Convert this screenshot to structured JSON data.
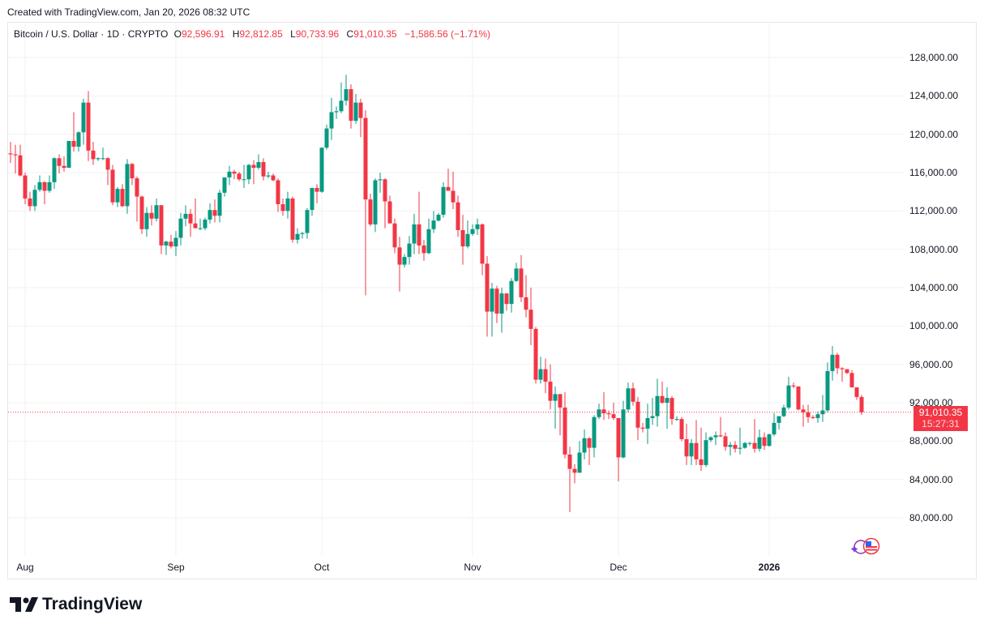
{
  "created_line": "Created with TradingView.com, Jan 20, 2026 08:32 UTC",
  "header": {
    "symbol": "Bitcoin / U.S. Dollar · 1D · CRYPTO",
    "open_label": "O",
    "open": "92,596.91",
    "high_label": "H",
    "high": "92,812.85",
    "low_label": "L",
    "low": "90,733.96",
    "close_label": "C",
    "close": "91,010.35",
    "change": "−1,586.56 (−1.71%)"
  },
  "price_label": {
    "price": "91,010.35",
    "countdown": "15:27:31"
  },
  "logo_text": "TradingView",
  "colors": {
    "up": "#089981",
    "down": "#f23645",
    "grid": "#f2f2f2",
    "price_line": "#f23645"
  },
  "chart_data": {
    "type": "candlestick",
    "title": "Bitcoin / U.S. Dollar · 1D · CRYPTO",
    "interval": "1D",
    "start_date": "2025-07-29",
    "ylim": [
      76000,
      130000
    ],
    "y_ticks": [
      {
        "value": 128000,
        "label": "128,000.00"
      },
      {
        "value": 124000,
        "label": "124,000.00"
      },
      {
        "value": 120000,
        "label": "120,000.00"
      },
      {
        "value": 116000,
        "label": "116,000.00"
      },
      {
        "value": 112000,
        "label": "112,000.00"
      },
      {
        "value": 108000,
        "label": "108,000.00"
      },
      {
        "value": 104000,
        "label": "104,000.00"
      },
      {
        "value": 100000,
        "label": "100,000.00"
      },
      {
        "value": 96000,
        "label": "96,000.00"
      },
      {
        "value": 92000,
        "label": "92,000.00"
      },
      {
        "value": 88000,
        "label": "88,000.00"
      },
      {
        "value": 84000,
        "label": "84,000.00"
      },
      {
        "value": 80000,
        "label": "80,000.00"
      }
    ],
    "x_ticks": [
      {
        "label": "Aug",
        "index": 3
      },
      {
        "label": "Sep",
        "index": 34
      },
      {
        "label": "Oct",
        "index": 64
      },
      {
        "label": "Nov",
        "index": 95
      },
      {
        "label": "Dec",
        "index": 125
      },
      {
        "label": "2026",
        "index": 156,
        "bold": true
      }
    ],
    "last_price": 91010.35,
    "ohlc_columns": [
      "open",
      "high",
      "low",
      "close"
    ],
    "candles": [
      [
        118000,
        119200,
        117000,
        117900
      ],
      [
        117900,
        118900,
        115900,
        117800
      ],
      [
        117800,
        118900,
        115600,
        115700
      ],
      [
        115700,
        116000,
        112700,
        113300
      ],
      [
        113300,
        114000,
        112000,
        112500
      ],
      [
        112500,
        114700,
        112000,
        114200
      ],
      [
        114200,
        115700,
        114000,
        115000
      ],
      [
        115000,
        115100,
        112700,
        114100
      ],
      [
        114100,
        115700,
        113900,
        115000
      ],
      [
        115000,
        117600,
        114300,
        117500
      ],
      [
        117500,
        117900,
        115900,
        116700
      ],
      [
        116700,
        117700,
        116100,
        116500
      ],
      [
        116500,
        119300,
        116500,
        119300
      ],
      [
        119300,
        122300,
        118200,
        118700
      ],
      [
        118700,
        120300,
        118200,
        120200
      ],
      [
        120200,
        123700,
        118900,
        123300
      ],
      [
        123300,
        124500,
        117200,
        118300
      ],
      [
        118300,
        119200,
        116800,
        117400
      ],
      [
        117400,
        117600,
        117200,
        117500
      ],
      [
        117500,
        118600,
        117300,
        117500
      ],
      [
        117500,
        117600,
        114700,
        116300
      ],
      [
        116300,
        116800,
        112600,
        112900
      ],
      [
        112900,
        114500,
        112400,
        114300
      ],
      [
        114300,
        114800,
        112400,
        112500
      ],
      [
        112500,
        117400,
        111700,
        116900
      ],
      [
        116900,
        117000,
        114700,
        115400
      ],
      [
        115400,
        115600,
        110900,
        113500
      ],
      [
        113500,
        113600,
        109600,
        110100
      ],
      [
        110100,
        112400,
        109300,
        111800
      ],
      [
        111800,
        112600,
        110500,
        111200
      ],
      [
        111200,
        113300,
        110900,
        112600
      ],
      [
        112600,
        112600,
        107500,
        108400
      ],
      [
        108400,
        108900,
        107400,
        108800
      ],
      [
        108800,
        109500,
        108100,
        108300
      ],
      [
        108300,
        109900,
        107300,
        109200
      ],
      [
        109200,
        111800,
        108400,
        111200
      ],
      [
        111200,
        112600,
        110400,
        111700
      ],
      [
        111700,
        112200,
        109300,
        110700
      ],
      [
        110700,
        113300,
        110200,
        110200
      ],
      [
        110200,
        111200,
        110000,
        110200
      ],
      [
        110200,
        111300,
        110000,
        111100
      ],
      [
        111100,
        112800,
        110700,
        112100
      ],
      [
        112100,
        113200,
        110800,
        111500
      ],
      [
        111500,
        114200,
        110800,
        113900
      ],
      [
        113900,
        115500,
        113500,
        115500
      ],
      [
        115500,
        116700,
        114700,
        116100
      ],
      [
        116100,
        116300,
        115300,
        115900
      ],
      [
        115900,
        116100,
        115100,
        115300
      ],
      [
        115300,
        116800,
        114400,
        115300
      ],
      [
        115300,
        116900,
        114800,
        116800
      ],
      [
        116800,
        117300,
        114800,
        116500
      ],
      [
        116500,
        117900,
        116300,
        117100
      ],
      [
        117100,
        117500,
        115200,
        115600
      ],
      [
        115600,
        116100,
        115400,
        115700
      ],
      [
        115700,
        115900,
        115100,
        115200
      ],
      [
        115200,
        115400,
        111900,
        112700
      ],
      [
        112700,
        113300,
        111500,
        112000
      ],
      [
        112000,
        114000,
        111200,
        113300
      ],
      [
        113300,
        113500,
        108700,
        109000
      ],
      [
        109000,
        110200,
        108600,
        109600
      ],
      [
        109600,
        109800,
        109100,
        109700
      ],
      [
        109700,
        112300,
        109100,
        112100
      ],
      [
        112100,
        114400,
        111500,
        114400
      ],
      [
        114400,
        114800,
        112800,
        114000
      ],
      [
        114000,
        118600,
        113900,
        118600
      ],
      [
        118600,
        121000,
        118400,
        120600
      ],
      [
        120600,
        123800,
        119400,
        122300
      ],
      [
        122300,
        122900,
        121600,
        122400
      ],
      [
        122400,
        125400,
        122200,
        123500
      ],
      [
        123500,
        126200,
        123000,
        124700
      ],
      [
        124700,
        125200,
        120600,
        121400
      ],
      [
        121400,
        124200,
        121100,
        123300
      ],
      [
        123300,
        123700,
        119700,
        121700
      ],
      [
        121700,
        122500,
        103200,
        113200
      ],
      [
        113200,
        113800,
        110400,
        110600
      ],
      [
        110600,
        115400,
        109800,
        115200
      ],
      [
        115200,
        116000,
        113900,
        115300
      ],
      [
        115300,
        115400,
        110200,
        113000
      ],
      [
        113000,
        113600,
        110800,
        110700
      ],
      [
        110700,
        111200,
        107600,
        108200
      ],
      [
        108200,
        109300,
        103600,
        106400
      ],
      [
        106400,
        107500,
        106100,
        107200
      ],
      [
        107200,
        109400,
        106400,
        108600
      ],
      [
        108600,
        111700,
        107500,
        110600
      ],
      [
        110600,
        114000,
        107500,
        108400
      ],
      [
        108400,
        109000,
        106800,
        107600
      ],
      [
        107600,
        111200,
        107500,
        110100
      ],
      [
        110100,
        112000,
        109700,
        111000
      ],
      [
        111000,
        111800,
        110900,
        111600
      ],
      [
        111600,
        115000,
        111300,
        114500
      ],
      [
        114500,
        116400,
        114300,
        114100
      ],
      [
        114100,
        116100,
        112200,
        112900
      ],
      [
        112900,
        113600,
        109300,
        110000
      ],
      [
        110000,
        111600,
        106400,
        108300
      ],
      [
        108300,
        111000,
        108100,
        109600
      ],
      [
        109600,
        110600,
        109400,
        110100
      ],
      [
        110100,
        111200,
        109500,
        110600
      ],
      [
        110600,
        110700,
        105300,
        106500
      ],
      [
        106500,
        107300,
        98900,
        101500
      ],
      [
        101500,
        104500,
        98900,
        103900
      ],
      [
        103900,
        104200,
        100300,
        101300
      ],
      [
        101300,
        104000,
        99300,
        103400
      ],
      [
        103400,
        103400,
        101600,
        102300
      ],
      [
        102300,
        105000,
        101400,
        104700
      ],
      [
        104700,
        106600,
        104600,
        106000
      ],
      [
        106000,
        107400,
        102500,
        103000
      ],
      [
        103000,
        105300,
        100900,
        101700
      ],
      [
        101700,
        104000,
        98000,
        99700
      ],
      [
        99700,
        99900,
        94000,
        94400
      ],
      [
        94400,
        96800,
        94000,
        95500
      ],
      [
        95500,
        96600,
        93000,
        94200
      ],
      [
        94200,
        96000,
        91300,
        92200
      ],
      [
        92200,
        93700,
        89300,
        92900
      ],
      [
        92900,
        92900,
        88600,
        91500
      ],
      [
        91500,
        93100,
        86200,
        86600
      ],
      [
        86600,
        87400,
        80600,
        85100
      ],
      [
        85100,
        85600,
        83600,
        84700
      ],
      [
        84700,
        88000,
        84700,
        86800
      ],
      [
        86800,
        89200,
        86100,
        88300
      ],
      [
        88300,
        88400,
        85500,
        87300
      ],
      [
        87300,
        90700,
        86300,
        90500
      ],
      [
        90500,
        91900,
        90300,
        91300
      ],
      [
        91300,
        93100,
        90200,
        90900
      ],
      [
        90900,
        91200,
        90300,
        90800
      ],
      [
        90800,
        92000,
        90200,
        90400
      ],
      [
        90400,
        90400,
        83800,
        86300
      ],
      [
        86300,
        92200,
        86200,
        91300
      ],
      [
        91300,
        94100,
        91000,
        93500
      ],
      [
        93500,
        94100,
        91700,
        92100
      ],
      [
        92100,
        92600,
        88100,
        89400
      ],
      [
        89400,
        89900,
        88900,
        89300
      ],
      [
        89300,
        91900,
        87700,
        90400
      ],
      [
        90400,
        92500,
        89700,
        90600
      ],
      [
        90600,
        94500,
        89500,
        92700
      ],
      [
        92700,
        94200,
        91900,
        92000
      ],
      [
        92000,
        93600,
        89300,
        92500
      ],
      [
        92500,
        92700,
        89700,
        90300
      ],
      [
        90300,
        90600,
        90100,
        90300
      ],
      [
        90300,
        90500,
        88000,
        88200
      ],
      [
        88200,
        89800,
        85500,
        86400
      ],
      [
        86400,
        88200,
        85500,
        87800
      ],
      [
        87800,
        90200,
        85500,
        86100
      ],
      [
        86100,
        89400,
        84900,
        85500
      ],
      [
        85500,
        88900,
        85300,
        88100
      ],
      [
        88100,
        88500,
        87900,
        88400
      ],
      [
        88400,
        89000,
        87600,
        88600
      ],
      [
        88600,
        90500,
        88400,
        88500
      ],
      [
        88500,
        88900,
        87000,
        87400
      ],
      [
        87400,
        87900,
        86500,
        87600
      ],
      [
        87600,
        88000,
        86800,
        87200
      ],
      [
        87200,
        89400,
        86600,
        87300
      ],
      [
        87300,
        87900,
        87200,
        87800
      ],
      [
        87800,
        87900,
        87500,
        87800
      ],
      [
        87800,
        90300,
        86800,
        87200
      ],
      [
        87200,
        89200,
        86900,
        88400
      ],
      [
        88400,
        88900,
        87100,
        87500
      ],
      [
        87500,
        88800,
        87400,
        88700
      ],
      [
        88700,
        90900,
        88500,
        89900
      ],
      [
        89900,
        90600,
        89200,
        90600
      ],
      [
        90600,
        91800,
        90500,
        91500
      ],
      [
        91500,
        94700,
        91300,
        93800
      ],
      [
        93800,
        94100,
        93500,
        93700
      ],
      [
        93700,
        93700,
        91200,
        91300
      ],
      [
        91300,
        91800,
        89500,
        91000
      ],
      [
        91000,
        91800,
        89900,
        90500
      ],
      [
        90500,
        90700,
        90300,
        90400
      ],
      [
        90400,
        91100,
        89900,
        90800
      ],
      [
        90800,
        92800,
        90000,
        91200
      ],
      [
        91200,
        96200,
        91000,
        95300
      ],
      [
        95300,
        97900,
        94300,
        97000
      ],
      [
        97000,
        97200,
        95000,
        95600
      ],
      [
        95600,
        95700,
        94200,
        95500
      ],
      [
        95500,
        95500,
        95000,
        95100
      ],
      [
        95100,
        95400,
        93600,
        93600
      ],
      [
        93600,
        93600,
        92300,
        92597
      ],
      [
        92596.91,
        92812.85,
        90733.96,
        91010.35
      ]
    ]
  }
}
